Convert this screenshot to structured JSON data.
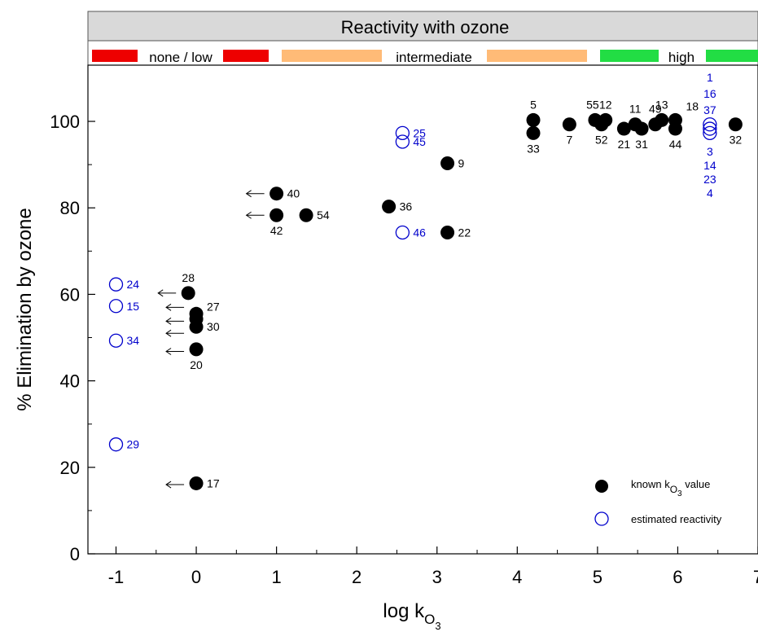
{
  "chart_data": {
    "type": "scatter",
    "header": {
      "title": "Reactivity with ozone",
      "bands": [
        {
          "label": "none / low",
          "color": "#ee0000"
        },
        {
          "label": "intermediate",
          "color": "#ffbb77"
        },
        {
          "label": "high",
          "color": "#22dd44"
        }
      ]
    },
    "xlabel": "log k",
    "xlabel_sub": "O",
    "xlabel_subsub": "3",
    "ylabel": "% Elimination by ozone",
    "xlim": [
      -1.35,
      7
    ],
    "ylim": [
      0,
      113
    ],
    "xticks": [
      -1,
      0,
      1,
      2,
      3,
      4,
      5,
      6,
      7
    ],
    "yticks": [
      0,
      20,
      40,
      60,
      80,
      100
    ],
    "colors": {
      "known": "#000000",
      "estimated": "#0000cc"
    },
    "series": [
      {
        "name": "known kO3 value",
        "marker": "filled",
        "points": [
          {
            "x": -0.1,
            "y": 60.3,
            "label": "28",
            "pos": "above"
          },
          {
            "x": 0.0,
            "y": 55.5,
            "label": "27",
            "pos": "right-up"
          },
          {
            "x": 0.0,
            "y": 54.3,
            "label": "",
            "pos": "none"
          },
          {
            "x": 0.0,
            "y": 52.5,
            "label": "30",
            "pos": "right"
          },
          {
            "x": 0.0,
            "y": 47.3,
            "label": "20",
            "pos": "below"
          },
          {
            "x": 0.0,
            "y": 16.3,
            "label": "17",
            "pos": "right"
          },
          {
            "x": 1.0,
            "y": 83.3,
            "label": "40",
            "pos": "right"
          },
          {
            "x": 1.0,
            "y": 78.3,
            "label": "42",
            "pos": "below"
          },
          {
            "x": 1.37,
            "y": 78.3,
            "label": "54",
            "pos": "right"
          },
          {
            "x": 2.4,
            "y": 80.3,
            "label": "36",
            "pos": "right"
          },
          {
            "x": 3.13,
            "y": 90.3,
            "label": "9",
            "pos": "right"
          },
          {
            "x": 3.13,
            "y": 74.3,
            "label": "22",
            "pos": "right"
          },
          {
            "x": 4.2,
            "y": 100.3,
            "label": "5",
            "pos": "above"
          },
          {
            "x": 4.2,
            "y": 97.3,
            "label": "33",
            "pos": "below"
          },
          {
            "x": 4.65,
            "y": 99.3,
            "label": "7",
            "pos": "below"
          },
          {
            "x": 4.97,
            "y": 100.3,
            "label": "55",
            "pos": "above-left"
          },
          {
            "x": 5.05,
            "y": 99.3,
            "label": "52",
            "pos": "below"
          },
          {
            "x": 5.1,
            "y": 100.3,
            "label": "12",
            "pos": "above"
          },
          {
            "x": 5.33,
            "y": 98.3,
            "label": "21",
            "pos": "below"
          },
          {
            "x": 5.47,
            "y": 99.3,
            "label": "11",
            "pos": "above"
          },
          {
            "x": 5.55,
            "y": 98.3,
            "label": "31",
            "pos": "below"
          },
          {
            "x": 5.72,
            "y": 99.3,
            "label": "49",
            "pos": "above"
          },
          {
            "x": 5.8,
            "y": 100.3,
            "label": "13",
            "pos": "above"
          },
          {
            "x": 5.97,
            "y": 100.3,
            "label": "18",
            "pos": "above-right"
          },
          {
            "x": 5.97,
            "y": 98.3,
            "label": "44",
            "pos": "below"
          },
          {
            "x": 6.72,
            "y": 99.3,
            "label": "32",
            "pos": "below"
          }
        ]
      },
      {
        "name": "estimated reactivity",
        "marker": "open",
        "points": [
          {
            "x": -1.0,
            "y": 62.3,
            "label": "24",
            "pos": "right"
          },
          {
            "x": -1.0,
            "y": 57.3,
            "label": "15",
            "pos": "right"
          },
          {
            "x": -1.0,
            "y": 49.3,
            "label": "34",
            "pos": "right"
          },
          {
            "x": -1.0,
            "y": 25.3,
            "label": "29",
            "pos": "right"
          },
          {
            "x": 2.57,
            "y": 97.3,
            "label": "25",
            "pos": "right"
          },
          {
            "x": 2.57,
            "y": 95.3,
            "label": "45",
            "pos": "right"
          },
          {
            "x": 2.57,
            "y": 74.3,
            "label": "46",
            "pos": "right"
          },
          {
            "x": 6.4,
            "y": 99.3,
            "label": "",
            "pos": "none"
          },
          {
            "x": 6.4,
            "y": 98.3,
            "label": "",
            "pos": "none"
          },
          {
            "x": 6.4,
            "y": 97.3,
            "label": "",
            "pos": "none"
          }
        ]
      }
    ],
    "stack_labels": [
      {
        "x": 6.4,
        "labels": [
          "1",
          "16",
          "37"
        ],
        "pos": "above"
      },
      {
        "x": 6.4,
        "labels": [
          "3",
          "14",
          "23",
          "4"
        ],
        "pos": "below"
      }
    ],
    "arrows": [
      {
        "x": -0.1,
        "y": 60.3
      },
      {
        "x": 0.0,
        "y": 57.0
      },
      {
        "x": 0.0,
        "y": 53.8
      },
      {
        "x": 0.0,
        "y": 51.0
      },
      {
        "x": 0.0,
        "y": 46.8
      },
      {
        "x": 0.0,
        "y": 16.0
      },
      {
        "x": 1.0,
        "y": 83.3
      },
      {
        "x": 1.0,
        "y": 78.3
      }
    ],
    "legend": {
      "placement": "bottom-right",
      "known": "known k",
      "known_sub": "O",
      "known_subsub": "3",
      "known_suffix": " value",
      "estimated": "estimated reactivity"
    }
  }
}
